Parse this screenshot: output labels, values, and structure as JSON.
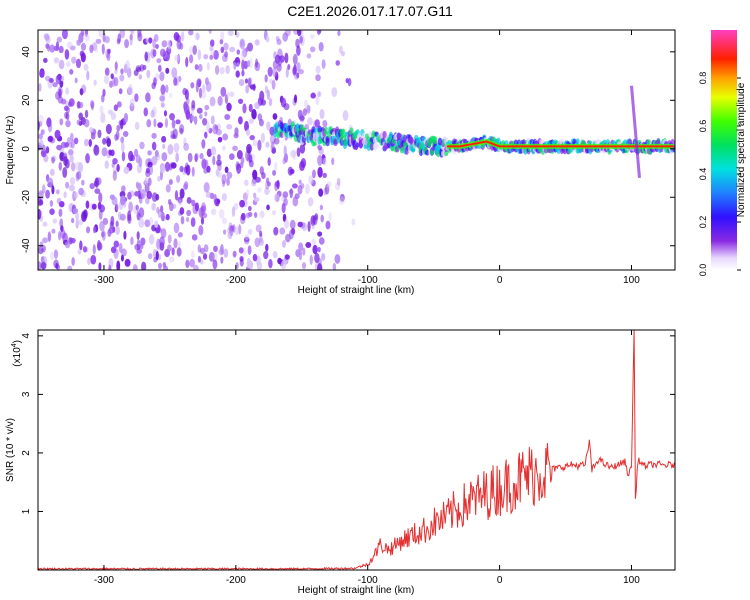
{
  "figure": {
    "title": "C2E1.2026.017.17.07.G11"
  },
  "colors": {
    "background": "#ffffff",
    "axis": "#000000",
    "snr_line": "#e53030",
    "scatter_purple": "#7a1ee8"
  },
  "chart_data": [
    {
      "id": "spectrogram",
      "type": "heatmap",
      "title": "C2E1.2026.017.17.07.G11",
      "xlabel": "Height of straight line (km)",
      "ylabel": "Frequency (Hz)",
      "xlim": [
        -350,
        133
      ],
      "ylim": [
        -50,
        49
      ],
      "xticks": [
        -300,
        -200,
        -100,
        0,
        100
      ],
      "xtick_labels": [
        "-300",
        "-200",
        "-100",
        "0",
        "100"
      ],
      "yticks": [
        -40,
        -20,
        0,
        20,
        40
      ],
      "ytick_labels": [
        "-40",
        "-20",
        "0",
        "20",
        "40"
      ],
      "grid": false,
      "colorbar": {
        "label": "Normalized spectral amplitude",
        "range": [
          0.0,
          1.0
        ],
        "ticks": [
          0.0,
          0.2,
          0.4,
          0.6,
          0.8
        ],
        "tick_labels": [
          "0.0",
          "0.2",
          "0.4",
          "0.6",
          "0.8"
        ],
        "colormap": "rainbow (white-purple-blue-cyan-green-yellow-red-magenta)"
      },
      "features": {
        "noise_region_x": [
          -350,
          -130
        ],
        "carrier_trace": [
          {
            "x": -170,
            "f": 9
          },
          {
            "x": -150,
            "f": 6
          },
          {
            "x": -130,
            "f": 5
          },
          {
            "x": -110,
            "f": 4
          },
          {
            "x": -90,
            "f": 3
          },
          {
            "x": -70,
            "f": 2
          },
          {
            "x": -50,
            "f": 1
          },
          {
            "x": -30,
            "f": 1
          },
          {
            "x": -10,
            "f": 3
          },
          {
            "x": 0,
            "f": 1
          },
          {
            "x": 20,
            "f": 1
          },
          {
            "x": 50,
            "f": 1
          },
          {
            "x": 80,
            "f": 1
          },
          {
            "x": 100,
            "f": 1
          },
          {
            "x": 133,
            "f": 1
          }
        ],
        "spike_at_x": 100,
        "spike_f_range": [
          -12,
          26
        ]
      }
    },
    {
      "id": "snr",
      "type": "line",
      "xlabel": "Height of straight line (km)",
      "ylabel": "SNR (10 * v/v)",
      "multiplier_label": "(x10",
      "multiplier_exp": "4",
      "multiplier_close": ")",
      "xlim": [
        -350,
        133
      ],
      "ylim": [
        0,
        4.1
      ],
      "xticks": [
        -300,
        -200,
        -100,
        0,
        100
      ],
      "xtick_labels": [
        "-300",
        "-200",
        "-100",
        "0",
        "100"
      ],
      "yticks": [
        1,
        2,
        3,
        4
      ],
      "ytick_labels": [
        "1",
        "2",
        "3",
        "4"
      ],
      "grid": false,
      "series": [
        {
          "name": "SNR",
          "x": [
            -350,
            -300,
            -250,
            -200,
            -150,
            -110,
            -100,
            -95,
            -90,
            -85,
            -80,
            -75,
            -70,
            -65,
            -60,
            -55,
            -50,
            -45,
            -40,
            -35,
            -30,
            -25,
            -20,
            -15,
            -10,
            -5,
            0,
            5,
            10,
            15,
            20,
            25,
            30,
            35,
            40,
            45,
            50,
            55,
            60,
            65,
            68,
            70,
            75,
            80,
            85,
            90,
            95,
            98,
            100,
            102,
            103,
            105,
            108,
            110,
            115,
            120,
            125,
            133
          ],
          "y": [
            0.02,
            0.02,
            0.02,
            0.02,
            0.02,
            0.03,
            0.1,
            0.25,
            0.45,
            0.35,
            0.4,
            0.5,
            0.55,
            0.6,
            0.65,
            0.7,
            0.8,
            0.85,
            0.9,
            1.0,
            1.05,
            1.15,
            1.2,
            1.25,
            1.3,
            1.35,
            1.4,
            1.45,
            1.5,
            1.55,
            1.6,
            1.65,
            1.68,
            1.7,
            1.72,
            1.75,
            1.77,
            1.8,
            1.78,
            1.8,
            2.2,
            1.7,
            1.9,
            1.8,
            1.75,
            1.8,
            1.85,
            1.6,
            1.8,
            4.1,
            1.2,
            1.9,
            1.8,
            1.78,
            1.8,
            1.8,
            1.79,
            1.8
          ],
          "color": "#e53030"
        }
      ]
    }
  ]
}
